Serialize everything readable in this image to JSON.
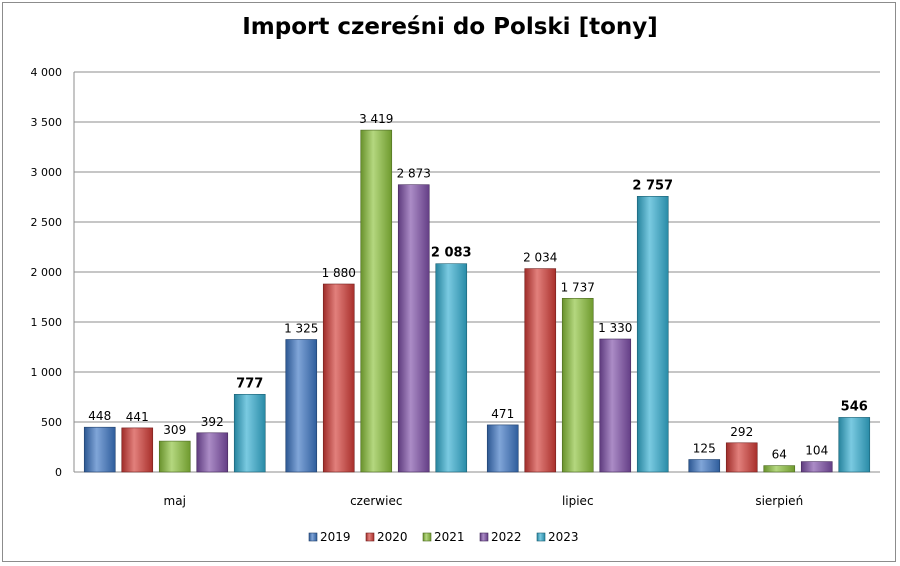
{
  "chart_data": {
    "type": "bar",
    "title": "Import czereśni do Polski [tony]",
    "categories": [
      "maj",
      "czerwiec",
      "lipiec",
      "sierpień"
    ],
    "series": [
      {
        "name": "2019",
        "values": [
          448,
          1325,
          471,
          125
        ],
        "labels": [
          "448",
          "1 325",
          "471",
          "125"
        ],
        "color": "#3b74c3"
      },
      {
        "name": "2020",
        "values": [
          441,
          1880,
          2034,
          292
        ],
        "labels": [
          "441",
          "1 880",
          "2 034",
          "292"
        ],
        "color": "#d23b36"
      },
      {
        "name": "2021",
        "values": [
          309,
          3419,
          1737,
          64
        ],
        "labels": [
          "309",
          "3 419",
          "1 737",
          "64"
        ],
        "color": "#8bc13a"
      },
      {
        "name": "2022",
        "values": [
          392,
          2873,
          1330,
          104
        ],
        "labels": [
          "392",
          "2 873",
          "1 330",
          "104"
        ],
        "color": "#7d4ea8"
      },
      {
        "name": "2023",
        "values": [
          777,
          2083,
          2757,
          546
        ],
        "labels": [
          "777",
          "2 083",
          "2 757",
          "546"
        ],
        "color": "#33aed1",
        "labels_bold": true
      }
    ],
    "ylim": [
      0,
      4000
    ],
    "yticks": [
      0,
      500,
      1000,
      1500,
      2000,
      2500,
      3000,
      3500,
      4000
    ],
    "ytick_labels": [
      "0",
      "500",
      "1 000",
      "1 500",
      "2 000",
      "2 500",
      "3 000",
      "3 500",
      "4 000"
    ],
    "grid": true,
    "legend_position": "bottom",
    "xlabel": "",
    "ylabel": ""
  }
}
